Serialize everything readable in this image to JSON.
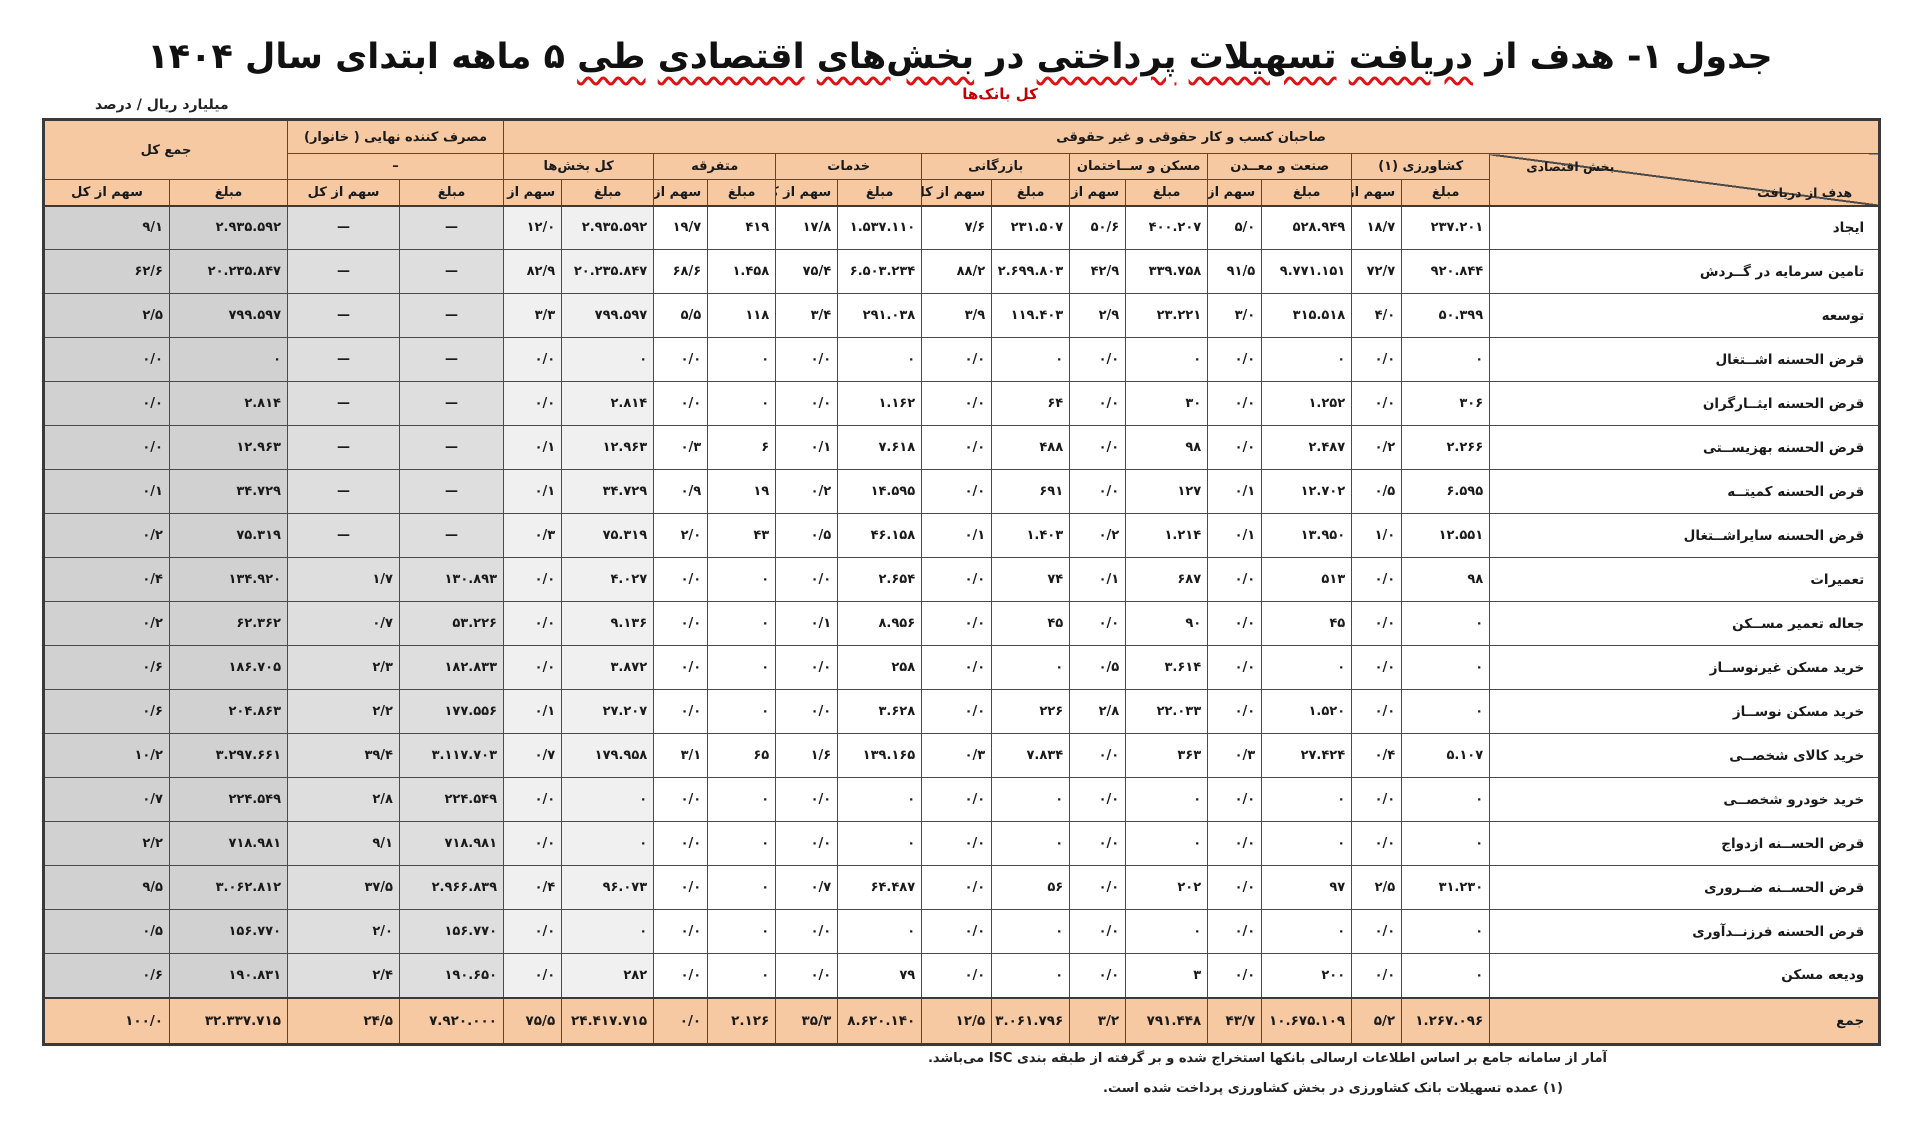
{
  "title": {
    "words": [
      {
        "text": "جدول ۱-",
        "underline": false
      },
      {
        "text": "هدف",
        "underline": false
      },
      {
        "text": "از",
        "underline": false
      },
      {
        "text": "دریافت",
        "underline": true
      },
      {
        "text": "تسهیلات",
        "underline": true
      },
      {
        "text": "پرداختی",
        "underline": true
      },
      {
        "text": "در",
        "underline": false
      },
      {
        "text": "بخش‌های",
        "underline": true
      },
      {
        "text": "اقتصادی",
        "underline": true
      },
      {
        "text": "طی",
        "underline": true
      },
      {
        "text": "۵",
        "underline": false
      },
      {
        "text": "ماهه",
        "underline": false
      },
      {
        "text": "ابتدای",
        "underline": false
      },
      {
        "text": "سال",
        "underline": false
      },
      {
        "text": "۱۴۰۴",
        "underline": false
      }
    ]
  },
  "units_note": "میلیارد ریال / درصد",
  "banks_label": "کل بانک‌ها",
  "colors": {
    "header_peach": "#f6c9a2",
    "accent_red": "#c40000"
  },
  "footnotes": [
    "آمار از سامانه جامع بر اساس اطلاعات ارسالی بانکها استخراج شده و بر گرفته از طبقه بندی ISC می‌باشد.",
    "(۱)    عمده تسهیلات بانک کشاورزی در بخش کشاورزی پرداخت شده است."
  ],
  "table": {
    "header": {
      "grand_total": "جمع کل",
      "final_consumer": "مصرف کننده نهایی ( خانوار)",
      "consumer_dash": "–",
      "business_owners": "صاحبان کسب و کار حقوقی و غیر حقوقی",
      "share": "سهم از کل",
      "amount": "مبلغ",
      "corner_rows": "هدف از دریافت",
      "corner_cols": "بخش اقتصادی"
    },
    "col_order": [
      "agriculture",
      "industry",
      "housing",
      "commerce",
      "services",
      "misc",
      "all_sectors",
      "consumer",
      "total"
    ],
    "group_labels": {
      "agriculture": "کشاورزی (۱)",
      "industry": "صنعت و معــدن",
      "housing": "مسکن و ســاختمان",
      "commerce": "بازرگانی",
      "services": "خدمات",
      "misc": "متفرقه",
      "all_sectors": "کل بخش‌ها",
      "consumer": "مصرف کننده نهایی ( خانوار)",
      "total": "جمع کل"
    },
    "col_widths": {
      "label": 390,
      "agriculture": [
        88,
        50
      ],
      "industry": [
        90,
        54
      ],
      "housing": [
        82,
        56
      ],
      "commerce": [
        78,
        70
      ],
      "services": [
        84,
        62
      ],
      "misc": [
        68,
        54
      ],
      "all_sectors": [
        92,
        58
      ],
      "consumer": [
        104,
        112
      ],
      "total": [
        118,
        126
      ]
    },
    "rows": [
      {
        "label": "ایجاد",
        "cells": {
          "total": [
            "۹/۱",
            "۲.۹۳۵.۵۹۲"
          ],
          "consumer": [
            "—",
            "—"
          ],
          "all_sectors": [
            "۱۲/۰",
            "۲.۹۳۵.۵۹۲"
          ],
          "misc": [
            "۱۹/۷",
            "۴۱۹"
          ],
          "services": [
            "۱۷/۸",
            "۱.۵۳۷.۱۱۰"
          ],
          "commerce": [
            "۷/۶",
            "۲۳۱.۵۰۷"
          ],
          "housing": [
            "۵۰/۶",
            "۴۰۰.۲۰۷"
          ],
          "industry": [
            "۵/۰",
            "۵۲۸.۹۴۹"
          ],
          "agriculture": [
            "۱۸/۷",
            "۲۳۷.۲۰۱"
          ]
        }
      },
      {
        "label": "تامین سرمایه در گــردش",
        "cells": {
          "total": [
            "۶۲/۶",
            "۲۰.۲۳۵.۸۴۷"
          ],
          "consumer": [
            "—",
            "—"
          ],
          "all_sectors": [
            "۸۲/۹",
            "۲۰.۲۳۵.۸۴۷"
          ],
          "misc": [
            "۶۸/۶",
            "۱.۴۵۸"
          ],
          "services": [
            "۷۵/۴",
            "۶.۵۰۳.۲۳۴"
          ],
          "commerce": [
            "۸۸/۲",
            "۲.۶۹۹.۸۰۳"
          ],
          "housing": [
            "۴۲/۹",
            "۳۳۹.۷۵۸"
          ],
          "industry": [
            "۹۱/۵",
            "۹.۷۷۱.۱۵۱"
          ],
          "agriculture": [
            "۷۲/۷",
            "۹۲۰.۸۴۴"
          ]
        }
      },
      {
        "label": "توسعه",
        "cells": {
          "total": [
            "۲/۵",
            "۷۹۹.۵۹۷"
          ],
          "consumer": [
            "—",
            "—"
          ],
          "all_sectors": [
            "۳/۳",
            "۷۹۹.۵۹۷"
          ],
          "misc": [
            "۵/۵",
            "۱۱۸"
          ],
          "services": [
            "۳/۴",
            "۲۹۱.۰۳۸"
          ],
          "commerce": [
            "۳/۹",
            "۱۱۹.۴۰۳"
          ],
          "housing": [
            "۲/۹",
            "۲۳.۲۲۱"
          ],
          "industry": [
            "۳/۰",
            "۳۱۵.۵۱۸"
          ],
          "agriculture": [
            "۴/۰",
            "۵۰.۳۹۹"
          ]
        }
      },
      {
        "label": "قرض الحسنه اشــتغال",
        "cells": {
          "total": [
            "۰/۰",
            "۰"
          ],
          "consumer": [
            "—",
            "—"
          ],
          "all_sectors": [
            "۰/۰",
            "۰"
          ],
          "misc": [
            "۰/۰",
            "۰"
          ],
          "services": [
            "۰/۰",
            "۰"
          ],
          "commerce": [
            "۰/۰",
            "۰"
          ],
          "housing": [
            "۰/۰",
            "۰"
          ],
          "industry": [
            "۰/۰",
            "۰"
          ],
          "agriculture": [
            "۰/۰",
            "۰"
          ]
        }
      },
      {
        "label": "قرض الحسنه ایثــارگران",
        "cells": {
          "total": [
            "۰/۰",
            "۲.۸۱۴"
          ],
          "consumer": [
            "—",
            "—"
          ],
          "all_sectors": [
            "۰/۰",
            "۲.۸۱۴"
          ],
          "misc": [
            "۰/۰",
            "۰"
          ],
          "services": [
            "۰/۰",
            "۱.۱۶۲"
          ],
          "commerce": [
            "۰/۰",
            "۶۴"
          ],
          "housing": [
            "۰/۰",
            "۳۰"
          ],
          "industry": [
            "۰/۰",
            "۱.۲۵۲"
          ],
          "agriculture": [
            "۰/۰",
            "۳۰۶"
          ]
        }
      },
      {
        "label": "قرض الحسنه بهزیســتی",
        "cells": {
          "total": [
            "۰/۰",
            "۱۲.۹۶۳"
          ],
          "consumer": [
            "—",
            "—"
          ],
          "all_sectors": [
            "۰/۱",
            "۱۲.۹۶۳"
          ],
          "misc": [
            "۰/۳",
            "۶"
          ],
          "services": [
            "۰/۱",
            "۷.۶۱۸"
          ],
          "commerce": [
            "۰/۰",
            "۴۸۸"
          ],
          "housing": [
            "۰/۰",
            "۹۸"
          ],
          "industry": [
            "۰/۰",
            "۲.۴۸۷"
          ],
          "agriculture": [
            "۰/۲",
            "۲.۲۶۶"
          ]
        }
      },
      {
        "label": "قرض الحسنه کمیتــه",
        "cells": {
          "total": [
            "۰/۱",
            "۳۴.۷۲۹"
          ],
          "consumer": [
            "—",
            "—"
          ],
          "all_sectors": [
            "۰/۱",
            "۳۴.۷۲۹"
          ],
          "misc": [
            "۰/۹",
            "۱۹"
          ],
          "services": [
            "۰/۲",
            "۱۴.۵۹۵"
          ],
          "commerce": [
            "۰/۰",
            "۶۹۱"
          ],
          "housing": [
            "۰/۰",
            "۱۲۷"
          ],
          "industry": [
            "۰/۱",
            "۱۲.۷۰۲"
          ],
          "agriculture": [
            "۰/۵",
            "۶.۵۹۵"
          ]
        }
      },
      {
        "label": "قرض الحسنه سایراشــتغال",
        "cells": {
          "total": [
            "۰/۲",
            "۷۵.۳۱۹"
          ],
          "consumer": [
            "—",
            "—"
          ],
          "all_sectors": [
            "۰/۳",
            "۷۵.۳۱۹"
          ],
          "misc": [
            "۲/۰",
            "۴۳"
          ],
          "services": [
            "۰/۵",
            "۴۶.۱۵۸"
          ],
          "commerce": [
            "۰/۱",
            "۱.۴۰۳"
          ],
          "housing": [
            "۰/۲",
            "۱.۲۱۴"
          ],
          "industry": [
            "۰/۱",
            "۱۳.۹۵۰"
          ],
          "agriculture": [
            "۱/۰",
            "۱۲.۵۵۱"
          ]
        }
      },
      {
        "label": "تعمیرات",
        "cells": {
          "total": [
            "۰/۴",
            "۱۳۴.۹۲۰"
          ],
          "consumer": [
            "۱/۷",
            "۱۳۰.۸۹۳"
          ],
          "all_sectors": [
            "۰/۰",
            "۴.۰۲۷"
          ],
          "misc": [
            "۰/۰",
            "۰"
          ],
          "services": [
            "۰/۰",
            "۲.۶۵۴"
          ],
          "commerce": [
            "۰/۰",
            "۷۴"
          ],
          "housing": [
            "۰/۱",
            "۶۸۷"
          ],
          "industry": [
            "۰/۰",
            "۵۱۳"
          ],
          "agriculture": [
            "۰/۰",
            "۹۸"
          ]
        }
      },
      {
        "label": "جعاله تعمیر مســکن",
        "cells": {
          "total": [
            "۰/۲",
            "۶۲.۳۶۲"
          ],
          "consumer": [
            "۰/۷",
            "۵۳.۲۲۶"
          ],
          "all_sectors": [
            "۰/۰",
            "۹.۱۳۶"
          ],
          "misc": [
            "۰/۰",
            "۰"
          ],
          "services": [
            "۰/۱",
            "۸.۹۵۶"
          ],
          "commerce": [
            "۰/۰",
            "۴۵"
          ],
          "housing": [
            "۰/۰",
            "۹۰"
          ],
          "industry": [
            "۰/۰",
            "۴۵"
          ],
          "agriculture": [
            "۰/۰",
            "۰"
          ]
        }
      },
      {
        "label": "خرید مسکن غیرنوســاز",
        "cells": {
          "total": [
            "۰/۶",
            "۱۸۶.۷۰۵"
          ],
          "consumer": [
            "۲/۳",
            "۱۸۲.۸۳۳"
          ],
          "all_sectors": [
            "۰/۰",
            "۳.۸۷۲"
          ],
          "misc": [
            "۰/۰",
            "۰"
          ],
          "services": [
            "۰/۰",
            "۲۵۸"
          ],
          "commerce": [
            "۰/۰",
            "۰"
          ],
          "housing": [
            "۰/۵",
            "۳.۶۱۴"
          ],
          "industry": [
            "۰/۰",
            "۰"
          ],
          "agriculture": [
            "۰/۰",
            "۰"
          ]
        }
      },
      {
        "label": "خرید مسکن نوســاز",
        "cells": {
          "total": [
            "۰/۶",
            "۲۰۴.۸۶۳"
          ],
          "consumer": [
            "۲/۲",
            "۱۷۷.۵۵۶"
          ],
          "all_sectors": [
            "۰/۱",
            "۲۷.۲۰۷"
          ],
          "misc": [
            "۰/۰",
            "۰"
          ],
          "services": [
            "۰/۰",
            "۳.۶۲۸"
          ],
          "commerce": [
            "۰/۰",
            "۲۲۶"
          ],
          "housing": [
            "۲/۸",
            "۲۲.۰۳۳"
          ],
          "industry": [
            "۰/۰",
            "۱.۵۲۰"
          ],
          "agriculture": [
            "۰/۰",
            "۰"
          ]
        }
      },
      {
        "label": "خرید کالای شخصــی",
        "cells": {
          "total": [
            "۱۰/۲",
            "۳.۲۹۷.۶۶۱"
          ],
          "consumer": [
            "۳۹/۴",
            "۳.۱۱۷.۷۰۳"
          ],
          "all_sectors": [
            "۰/۷",
            "۱۷۹.۹۵۸"
          ],
          "misc": [
            "۳/۱",
            "۶۵"
          ],
          "services": [
            "۱/۶",
            "۱۳۹.۱۶۵"
          ],
          "commerce": [
            "۰/۳",
            "۷.۸۳۴"
          ],
          "housing": [
            "۰/۰",
            "۳۶۳"
          ],
          "industry": [
            "۰/۳",
            "۲۷.۴۲۴"
          ],
          "agriculture": [
            "۰/۴",
            "۵.۱۰۷"
          ]
        }
      },
      {
        "label": "خرید خودرو شخصــی",
        "cells": {
          "total": [
            "۰/۷",
            "۲۲۴.۵۴۹"
          ],
          "consumer": [
            "۲/۸",
            "۲۲۴.۵۴۹"
          ],
          "all_sectors": [
            "۰/۰",
            "۰"
          ],
          "misc": [
            "۰/۰",
            "۰"
          ],
          "services": [
            "۰/۰",
            "۰"
          ],
          "commerce": [
            "۰/۰",
            "۰"
          ],
          "housing": [
            "۰/۰",
            "۰"
          ],
          "industry": [
            "۰/۰",
            "۰"
          ],
          "agriculture": [
            "۰/۰",
            "۰"
          ]
        }
      },
      {
        "label": "قرض الحســنه ازدواج",
        "cells": {
          "total": [
            "۲/۲",
            "۷۱۸.۹۸۱"
          ],
          "consumer": [
            "۹/۱",
            "۷۱۸.۹۸۱"
          ],
          "all_sectors": [
            "۰/۰",
            "۰"
          ],
          "misc": [
            "۰/۰",
            "۰"
          ],
          "services": [
            "۰/۰",
            "۰"
          ],
          "commerce": [
            "۰/۰",
            "۰"
          ],
          "housing": [
            "۰/۰",
            "۰"
          ],
          "industry": [
            "۰/۰",
            "۰"
          ],
          "agriculture": [
            "۰/۰",
            "۰"
          ]
        }
      },
      {
        "label": "قرض الحســنه ضــروری",
        "cells": {
          "total": [
            "۹/۵",
            "۳.۰۶۲.۸۱۲"
          ],
          "consumer": [
            "۳۷/۵",
            "۲.۹۶۶.۸۳۹"
          ],
          "all_sectors": [
            "۰/۴",
            "۹۶.۰۷۳"
          ],
          "misc": [
            "۰/۰",
            "۰"
          ],
          "services": [
            "۰/۷",
            "۶۴.۴۸۷"
          ],
          "commerce": [
            "۰/۰",
            "۵۶"
          ],
          "housing": [
            "۰/۰",
            "۲۰۲"
          ],
          "industry": [
            "۰/۰",
            "۹۷"
          ],
          "agriculture": [
            "۲/۵",
            "۳۱.۲۳۰"
          ]
        }
      },
      {
        "label": "قرض الحسنه فرزنــدآوری",
        "cells": {
          "total": [
            "۰/۵",
            "۱۵۶.۷۷۰"
          ],
          "consumer": [
            "۲/۰",
            "۱۵۶.۷۷۰"
          ],
          "all_sectors": [
            "۰/۰",
            "۰"
          ],
          "misc": [
            "۰/۰",
            "۰"
          ],
          "services": [
            "۰/۰",
            "۰"
          ],
          "commerce": [
            "۰/۰",
            "۰"
          ],
          "housing": [
            "۰/۰",
            "۰"
          ],
          "industry": [
            "۰/۰",
            "۰"
          ],
          "agriculture": [
            "۰/۰",
            "۰"
          ]
        }
      },
      {
        "label": "ودیعه  مسکن",
        "cells": {
          "total": [
            "۰/۶",
            "۱۹۰.۸۳۱"
          ],
          "consumer": [
            "۲/۴",
            "۱۹۰.۶۵۰"
          ],
          "all_sectors": [
            "۰/۰",
            "۲۸۲"
          ],
          "misc": [
            "۰/۰",
            "۰"
          ],
          "services": [
            "۰/۰",
            "۷۹"
          ],
          "commerce": [
            "۰/۰",
            "۰"
          ],
          "housing": [
            "۰/۰",
            "۳"
          ],
          "industry": [
            "۰/۰",
            "۲۰۰"
          ],
          "agriculture": [
            "۰/۰",
            "۰"
          ]
        }
      }
    ],
    "total_row": {
      "label": "جمع",
      "cells": {
        "total": [
          "۱۰۰/۰",
          "۳۲.۳۳۷.۷۱۵"
        ],
        "consumer": [
          "۲۴/۵",
          "۷.۹۲۰.۰۰۰"
        ],
        "all_sectors": [
          "۷۵/۵",
          "۲۴.۴۱۷.۷۱۵"
        ],
        "misc": [
          "۰/۰",
          "۲.۱۲۶"
        ],
        "services": [
          "۳۵/۳",
          "۸.۶۲۰.۱۴۰"
        ],
        "commerce": [
          "۱۲/۵",
          "۳.۰۶۱.۷۹۶"
        ],
        "housing": [
          "۳/۲",
          "۷۹۱.۴۴۸"
        ],
        "industry": [
          "۴۳/۷",
          "۱۰.۶۷۵.۱۰۹"
        ],
        "agriculture": [
          "۵/۲",
          "۱.۲۶۷.۰۹۶"
        ]
      }
    }
  }
}
